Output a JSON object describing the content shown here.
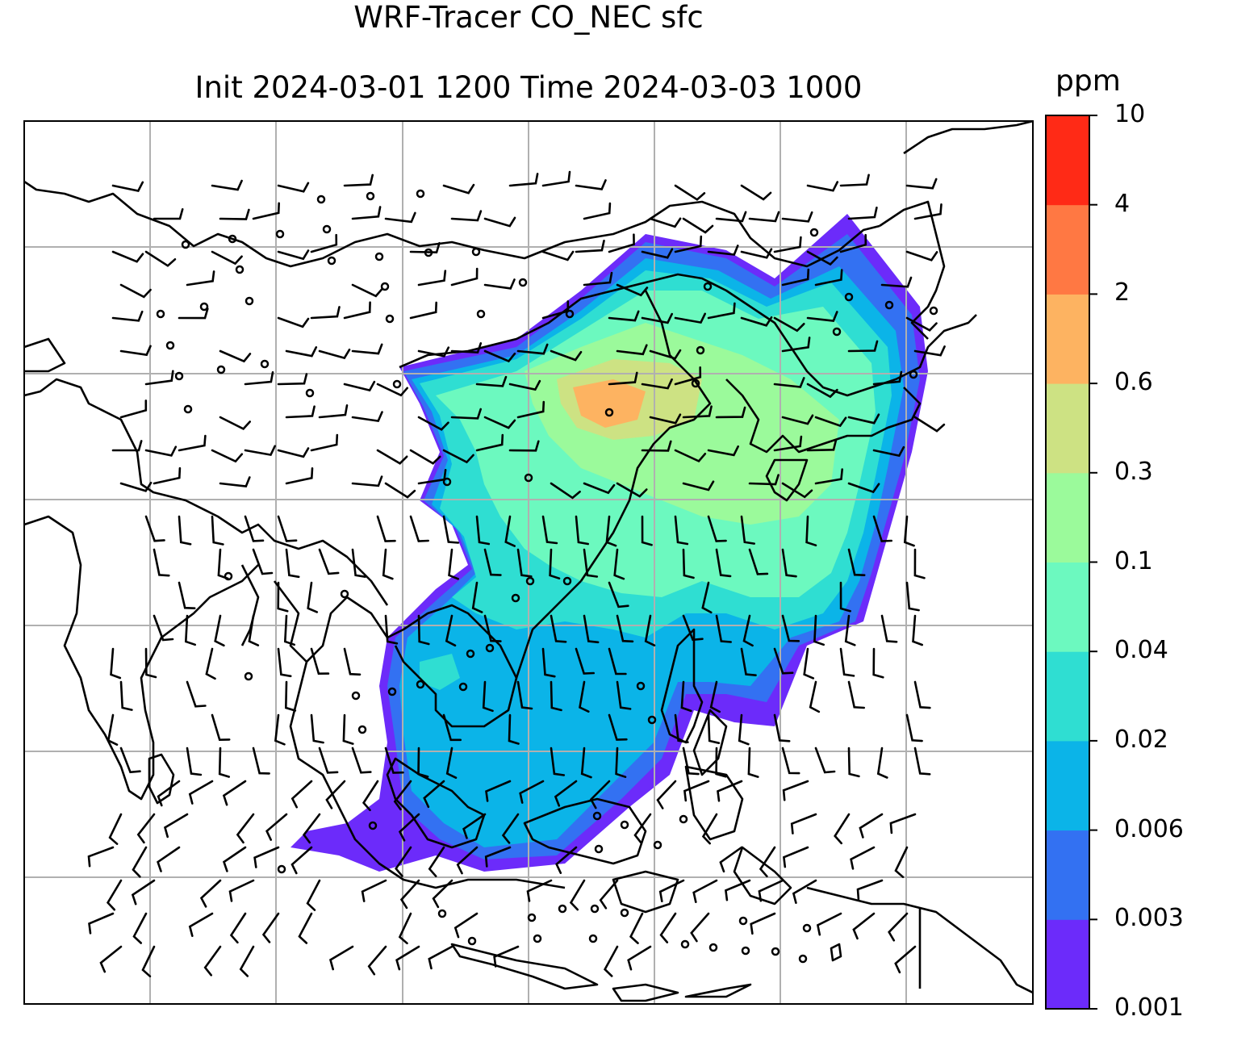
{
  "title": {
    "line1": "WRF-Tracer CO_NEC sfc",
    "line2": "Init 2024-03-01 1200 Time 2024-03-03 1000"
  },
  "colorbar": {
    "unit": "ppm",
    "levels": [
      "0.001",
      "0.003",
      "0.006",
      "0.02",
      "0.04",
      "0.1",
      "0.3",
      "0.6",
      "2",
      "4",
      "10"
    ],
    "colors": [
      "#6c2bfa",
      "#3371f2",
      "#0bb4e8",
      "#2fded2",
      "#6cf9bf",
      "#9bfa9b",
      "#cde283",
      "#fdb361",
      "#ff7843",
      "#ff2a16"
    ]
  },
  "map": {
    "type": "filled contour map with wind barbs",
    "variable": "CO_NEC surface tracer",
    "gridlines": true,
    "coastlines": true,
    "wind_barbs": true
  }
}
